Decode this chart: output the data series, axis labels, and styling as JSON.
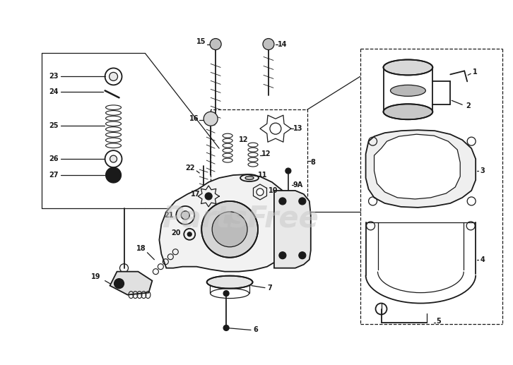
{
  "bg_color": "#ffffff",
  "watermark_text": "PartsFree",
  "watermark_color": "#c8c8c8",
  "watermark_alpha": 0.5,
  "fig_width": 7.26,
  "fig_height": 5.17,
  "dpi": 100,
  "line_color": "#1a1a1a",
  "label_fontsize": 7,
  "label_bold": true
}
